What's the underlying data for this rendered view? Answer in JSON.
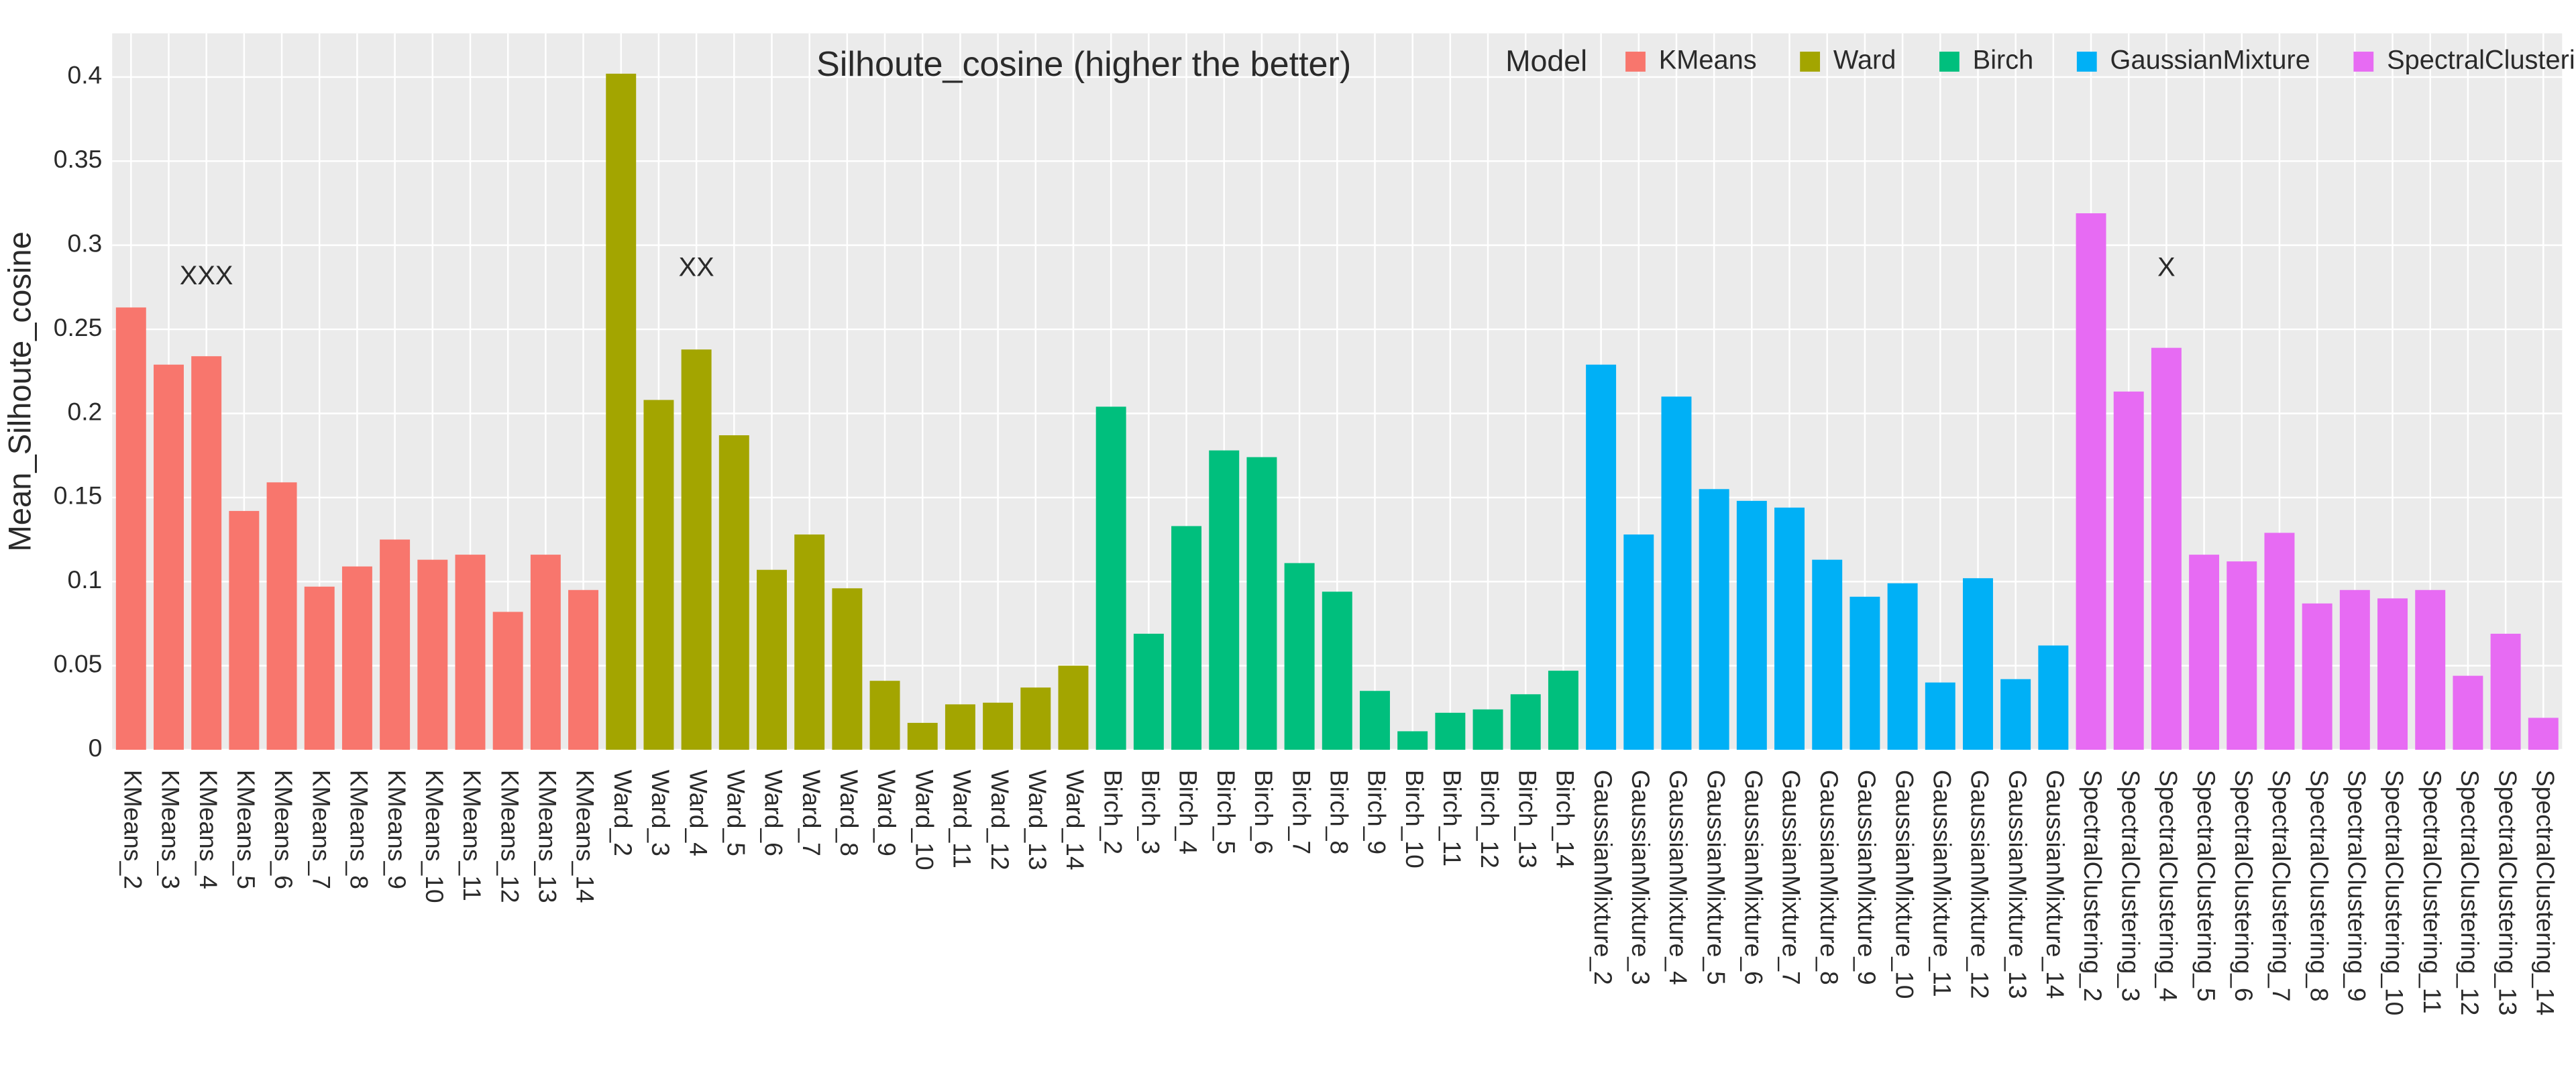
{
  "chart_data": {
    "type": "bar",
    "title": "Silhoute_cosine (higher the better)",
    "y_label": "Mean_Silhoute_cosine",
    "legend_title": "Model",
    "legend_position": "top-right",
    "grid": true,
    "ylim": [
      0,
      0.426
    ],
    "yticks": [
      0,
      0.05,
      0.1,
      0.15,
      0.2,
      0.25,
      0.3,
      0.35,
      0.4
    ],
    "categories": [
      "KMeans_2",
      "KMeans_3",
      "KMeans_4",
      "KMeans_5",
      "KMeans_6",
      "KMeans_7",
      "KMeans_8",
      "KMeans_9",
      "KMeans_10",
      "KMeans_11",
      "KMeans_12",
      "KMeans_13",
      "KMeans_14",
      "Ward_2",
      "Ward_3",
      "Ward_4",
      "Ward_5",
      "Ward_6",
      "Ward_7",
      "Ward_8",
      "Ward_9",
      "Ward_10",
      "Ward_11",
      "Ward_12",
      "Ward_13",
      "Ward_14",
      "Birch_2",
      "Birch_3",
      "Birch_4",
      "Birch_5",
      "Birch_6",
      "Birch_7",
      "Birch_8",
      "Birch_9",
      "Birch_10",
      "Birch_11",
      "Birch_12",
      "Birch_13",
      "Birch_14",
      "GaussianMixture_2",
      "GaussianMixture_3",
      "GaussianMixture_4",
      "GaussianMixture_5",
      "GaussianMixture_6",
      "GaussianMixture_7",
      "GaussianMixture_8",
      "GaussianMixture_9",
      "GaussianMixture_10",
      "GaussianMixture_11",
      "GaussianMixture_12",
      "GaussianMixture_13",
      "GaussianMixture_14",
      "SpectralClustering_2",
      "SpectralClustering_3",
      "SpectralClustering_4",
      "SpectralClustering_5",
      "SpectralClustering_6",
      "SpectralClustering_7",
      "SpectralClustering_8",
      "SpectralClustering_9",
      "SpectralClustering_10",
      "SpectralClustering_11",
      "SpectralClustering_12",
      "SpectralClustering_13",
      "SpectralClustering_14"
    ],
    "series": [
      {
        "name": "KMeans",
        "color": "#F8766D",
        "values": [
          0.263,
          0.229,
          0.234,
          0.142,
          0.159,
          0.097,
          0.109,
          0.125,
          0.113,
          0.116,
          0.082,
          0.116,
          0.095,
          null,
          null,
          null,
          null,
          null,
          null,
          null,
          null,
          null,
          null,
          null,
          null,
          null,
          null,
          null,
          null,
          null,
          null,
          null,
          null,
          null,
          null,
          null,
          null,
          null,
          null,
          null,
          null,
          null,
          null,
          null,
          null,
          null,
          null,
          null,
          null,
          null,
          null,
          null,
          null,
          null,
          null,
          null,
          null,
          null,
          null,
          null,
          null,
          null,
          null,
          null,
          null
        ]
      },
      {
        "name": "Ward",
        "color": "#A3A500",
        "values": [
          null,
          null,
          null,
          null,
          null,
          null,
          null,
          null,
          null,
          null,
          null,
          null,
          null,
          0.402,
          0.208,
          0.238,
          0.187,
          0.107,
          0.128,
          0.096,
          0.041,
          0.016,
          0.027,
          0.028,
          0.037,
          0.05,
          null,
          null,
          null,
          null,
          null,
          null,
          null,
          null,
          null,
          null,
          null,
          null,
          null,
          null,
          null,
          null,
          null,
          null,
          null,
          null,
          null,
          null,
          null,
          null,
          null,
          null,
          null,
          null,
          null,
          null,
          null,
          null,
          null,
          null,
          null,
          null,
          null,
          null,
          null
        ]
      },
      {
        "name": "Birch",
        "color": "#00BF7D",
        "values": [
          null,
          null,
          null,
          null,
          null,
          null,
          null,
          null,
          null,
          null,
          null,
          null,
          null,
          null,
          null,
          null,
          null,
          null,
          null,
          null,
          null,
          null,
          null,
          null,
          null,
          null,
          0.204,
          0.069,
          0.133,
          0.178,
          0.174,
          0.111,
          0.094,
          0.035,
          0.011,
          0.022,
          0.024,
          0.033,
          0.047,
          null,
          null,
          null,
          null,
          null,
          null,
          null,
          null,
          null,
          null,
          null,
          null,
          null,
          null,
          null,
          null,
          null,
          null,
          null,
          null,
          null,
          null,
          null,
          null,
          null,
          null
        ]
      },
      {
        "name": "GaussianMixture",
        "color": "#00B0F6",
        "values": [
          null,
          null,
          null,
          null,
          null,
          null,
          null,
          null,
          null,
          null,
          null,
          null,
          null,
          null,
          null,
          null,
          null,
          null,
          null,
          null,
          null,
          null,
          null,
          null,
          null,
          null,
          null,
          null,
          null,
          null,
          null,
          null,
          null,
          null,
          null,
          null,
          null,
          null,
          null,
          0.229,
          0.128,
          0.21,
          0.155,
          0.148,
          0.144,
          0.113,
          0.091,
          0.099,
          0.04,
          0.102,
          0.042,
          0.062,
          null,
          null,
          null,
          null,
          null,
          null,
          null,
          null,
          null,
          null,
          null,
          null,
          null
        ]
      },
      {
        "name": "SpectralClustering",
        "color": "#E76BF3",
        "values": [
          null,
          null,
          null,
          null,
          null,
          null,
          null,
          null,
          null,
          null,
          null,
          null,
          null,
          null,
          null,
          null,
          null,
          null,
          null,
          null,
          null,
          null,
          null,
          null,
          null,
          null,
          null,
          null,
          null,
          null,
          null,
          null,
          null,
          null,
          null,
          null,
          null,
          null,
          null,
          null,
          null,
          null,
          null,
          null,
          null,
          null,
          null,
          null,
          null,
          null,
          null,
          null,
          0.319,
          0.213,
          0.239,
          0.116,
          0.112,
          0.129,
          0.087,
          0.095,
          0.09,
          0.095,
          0.044,
          0.069,
          0.019
        ]
      }
    ],
    "annotations": [
      {
        "text": "XXX",
        "x": "KMeans_4",
        "y": 0.281
      },
      {
        "text": "XX",
        "x": "Ward_4",
        "y": 0.286
      },
      {
        "text": "X",
        "x": "SpectralClustering_4",
        "y": 0.286
      }
    ]
  }
}
